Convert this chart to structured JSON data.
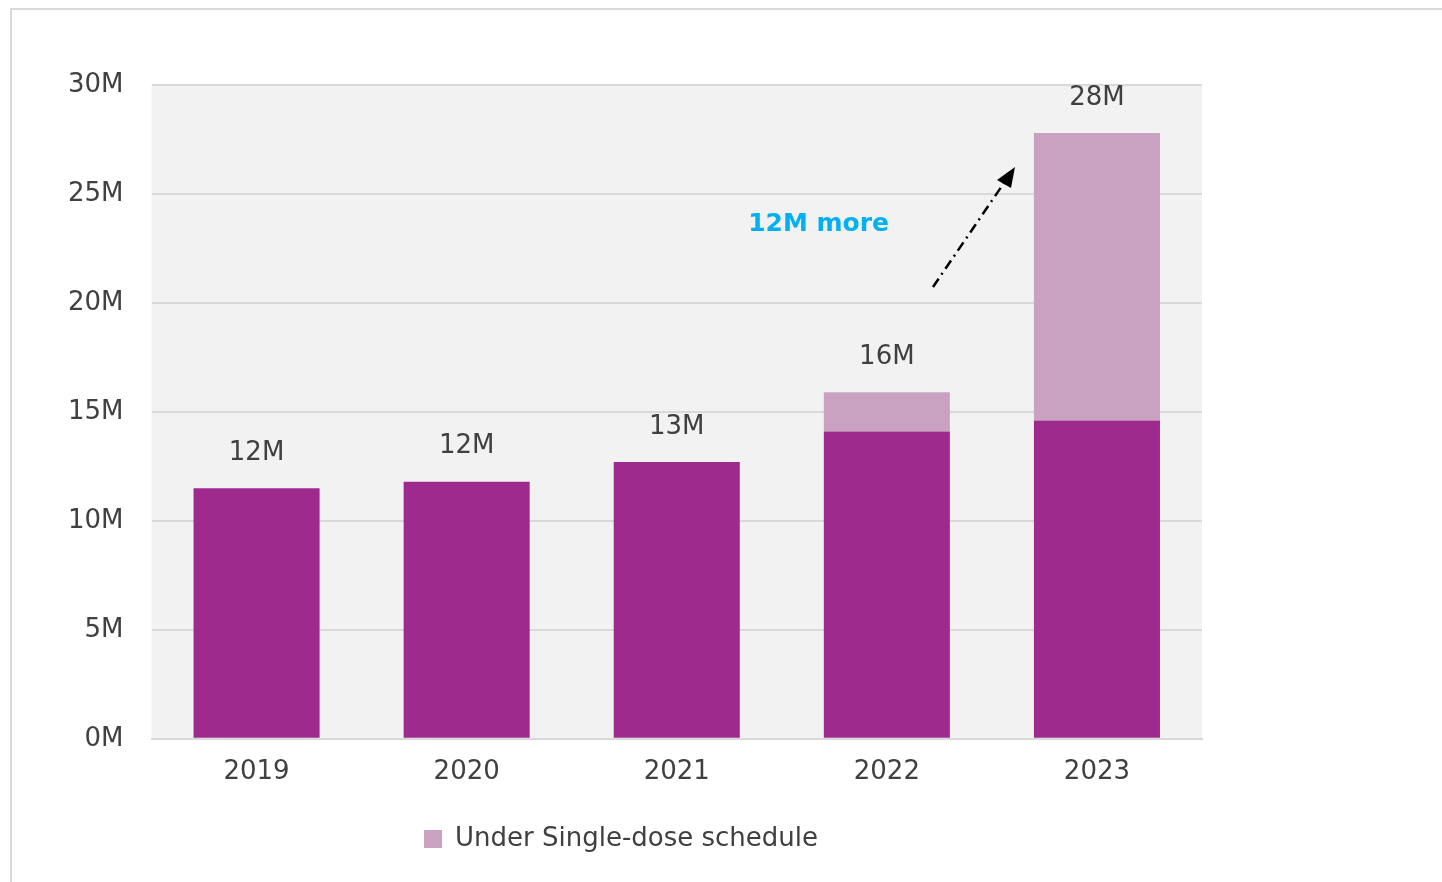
{
  "chart_data": {
    "type": "bar",
    "stacked": true,
    "categories": [
      "2019",
      "2020",
      "2021",
      "2022",
      "2023"
    ],
    "series": [
      {
        "color": "#9e2a8e",
        "values": [
          11.5,
          11.8,
          12.7,
          14.1,
          14.6
        ]
      },
      {
        "name": "Under Single-dose schedule",
        "color": "#c8a2c0",
        "values": [
          null,
          null,
          null,
          1.8,
          13.2
        ]
      }
    ],
    "ylim": [
      0,
      30
    ],
    "yticks": [
      {
        "value": 0,
        "label": "0M"
      },
      {
        "value": 5,
        "label": "5M"
      },
      {
        "value": 10,
        "label": "10M"
      },
      {
        "value": 15,
        "label": "15M"
      },
      {
        "value": 20,
        "label": "20M"
      },
      {
        "value": 25,
        "label": "25M"
      },
      {
        "value": 30,
        "label": "30M"
      }
    ],
    "totals": [
      "12M",
      "12M",
      "13M",
      "16M",
      "28M"
    ],
    "annotations": [
      "12M more"
    ],
    "grid": "y",
    "legend": "bottom"
  }
}
